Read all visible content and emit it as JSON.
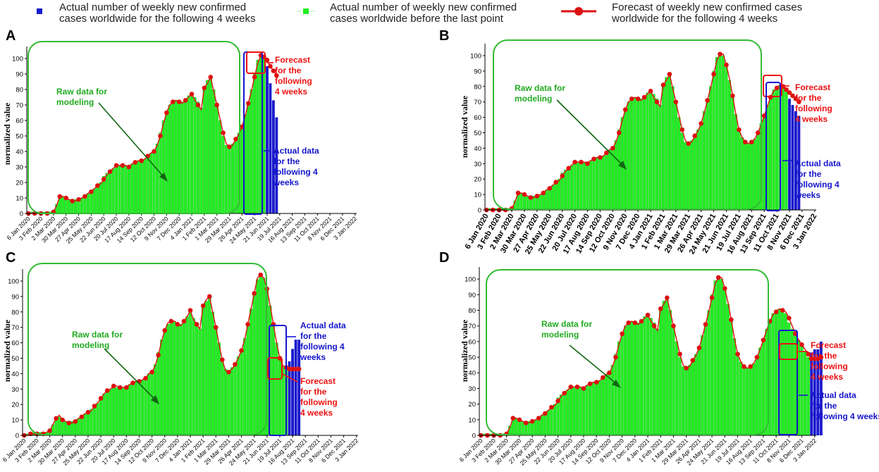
{
  "legend": {
    "blue_label_line1": "Actual number of weekly new confirmed",
    "blue_label_line2": "cases worldwide for the following 4 weeks",
    "green_label_line1": "Actual number of weekly new confirmed",
    "green_label_line2": "cases worldwide before the last point",
    "red_label_line1": "Forecast of weekly new confirmed cases",
    "red_label_line2": "worldwide for the following 4 weeks"
  },
  "colors": {
    "bar_green": "#22ee22",
    "bar_green_edge": "#19b519",
    "bar_blue": "#1a1acc",
    "line_red": "#dd1111",
    "box_green": "#33bb33",
    "annot_green": "#22aa22",
    "annot_red": "#ee1111",
    "annot_blue": "#1515cc"
  },
  "shared": {
    "ylabel": "normalized value",
    "yticks": [
      0,
      10,
      20,
      30,
      40,
      50,
      60,
      70,
      80,
      90,
      100
    ]
  },
  "chart_data": [
    {
      "panel": "A",
      "type": "bar",
      "x_tick_labels": [
        "6 Jan 2020",
        "3 Feb 2020",
        "2 Mar 2020",
        "30 Mar 2020",
        "27 Apr 2020",
        "25 May 2020",
        "22 Jun 2020",
        "20 Jul 2020",
        "17 Aug 2020",
        "14 Sep 2020",
        "12 Oct 2020",
        "9 Nov 2020",
        "7 Dec 2020",
        "4 Jan 2021",
        "1 Feb 2021",
        "1 Mar 2021",
        "29 Mar 2021",
        "26 Apr 2021",
        "24 May 2021",
        "21 Jun 2021",
        "19 Jul 2021",
        "16 Aug 2021",
        "13 Sep 2021",
        "11 Oct 2021",
        "8 Nov 2021",
        "6 Dec 2021",
        "3 Jan 2022"
      ],
      "ylim": [
        0,
        105
      ],
      "series": [
        {
          "name": "Actual number of weekly new confirmed cases worldwide before the last point",
          "kind": "bar",
          "color": "green",
          "values": [
            1,
            1,
            1,
            1,
            1,
            1,
            1,
            1,
            2,
            6,
            10,
            11,
            10,
            9,
            9,
            9,
            9,
            10,
            12,
            13,
            14,
            16,
            18,
            20,
            24,
            26,
            28,
            29,
            30,
            31,
            31,
            31,
            31,
            32,
            33,
            34,
            35,
            35,
            37,
            39,
            41,
            45,
            52,
            60,
            66,
            70,
            72,
            73,
            72,
            72,
            74,
            76,
            78,
            75,
            72,
            68,
            82,
            86,
            88,
            80,
            70,
            60,
            50,
            44,
            43,
            45,
            48,
            52,
            57,
            64,
            72,
            80,
            90,
            99,
            102,
            100
          ]
        },
        {
          "name": "Actual number of weekly new confirmed cases worldwide for the following 4 weeks",
          "kind": "bar",
          "color": "blue",
          "values": [
            95,
            84,
            73,
            62
          ]
        },
        {
          "name": "Forecast of weekly new confirmed cases worldwide for the following 4 weeks",
          "kind": "line",
          "color": "red",
          "values": [
            0,
            0,
            0,
            0,
            0,
            0,
            0,
            0,
            1,
            5,
            11,
            11,
            10,
            9,
            8,
            8,
            9,
            10,
            11,
            13,
            14,
            16,
            18,
            19,
            22,
            25,
            27,
            29,
            31,
            31,
            31,
            31,
            30,
            32,
            33,
            34,
            34,
            35,
            37,
            39,
            40,
            44,
            50,
            58,
            65,
            70,
            72,
            73,
            72,
            71,
            73,
            75,
            77,
            73,
            70,
            67,
            81,
            84,
            88,
            79,
            70,
            61,
            52,
            45,
            43,
            44,
            48,
            51,
            56,
            63,
            71,
            79,
            88,
            97,
            102,
            101,
            99,
            95,
            92,
            89
          ]
        }
      ],
      "annotations": {
        "raw": [
          "Raw data for",
          "modeling"
        ],
        "forecast": [
          "Forecast",
          "for the",
          "following",
          "4 weeks"
        ],
        "actual": [
          "Actual data",
          "for the",
          "following 4",
          "weeks"
        ]
      }
    },
    {
      "panel": "B",
      "type": "bar",
      "x_tick_labels": [
        "6 Jan 2020",
        "3 Feb 2020",
        "2 Mar 2020",
        "30 Mar 2020",
        "27 Apr 2020",
        "25 May 2020",
        "22 Jun 2020",
        "20 Jul 2020",
        "17 Aug 2020",
        "14 Sep 2020",
        "12 Oct 2020",
        "9 Nov 2020",
        "7 Dec 2020",
        "4 Jan 2021",
        "1 Feb 2021",
        "1 Mar 2021",
        "29 Mar 2021",
        "26 Apr 2021",
        "24 May 2021",
        "21 Jun 2021",
        "19 Jul 2021",
        "16 Aug 2021",
        "13 Sep 2021",
        "11 Oct 2021",
        "8 Nov 2021",
        "6 Dec 2021",
        "3 Jan 2022"
      ],
      "ylim": [
        0,
        105
      ],
      "series": [
        {
          "name": "Actual number of weekly new confirmed cases worldwide before the last point",
          "kind": "bar",
          "color": "green",
          "values": [
            1,
            1,
            1,
            1,
            1,
            1,
            1,
            1,
            2,
            6,
            10,
            11,
            10,
            9,
            9,
            9,
            9,
            10,
            12,
            13,
            14,
            16,
            18,
            20,
            24,
            26,
            28,
            29,
            30,
            31,
            31,
            31,
            31,
            32,
            33,
            34,
            35,
            35,
            37,
            39,
            41,
            45,
            52,
            60,
            66,
            70,
            72,
            73,
            72,
            72,
            74,
            76,
            78,
            75,
            72,
            68,
            82,
            86,
            88,
            80,
            70,
            60,
            50,
            44,
            43,
            45,
            48,
            52,
            57,
            64,
            72,
            80,
            90,
            99,
            102,
            100,
            95,
            84,
            73,
            62,
            52,
            47,
            44,
            43,
            44,
            46,
            50,
            56,
            62,
            68,
            74,
            78,
            80,
            81,
            80,
            78
          ]
        },
        {
          "name": "Actual number of weekly new confirmed cases worldwide for the following 4 weeks",
          "kind": "bar",
          "color": "blue",
          "values": [
            72,
            68,
            64,
            61
          ]
        },
        {
          "name": "Forecast of weekly new confirmed cases worldwide for the following 4 weeks",
          "kind": "line",
          "color": "red",
          "values": [
            0,
            0,
            0,
            0,
            0,
            0,
            0,
            0,
            1,
            5,
            11,
            11,
            10,
            9,
            8,
            8,
            9,
            10,
            11,
            13,
            14,
            16,
            18,
            19,
            22,
            25,
            27,
            29,
            31,
            31,
            31,
            31,
            30,
            32,
            33,
            34,
            34,
            35,
            37,
            39,
            40,
            44,
            50,
            58,
            65,
            70,
            72,
            73,
            72,
            71,
            73,
            75,
            77,
            73,
            70,
            67,
            81,
            84,
            88,
            79,
            70,
            61,
            52,
            45,
            43,
            44,
            48,
            51,
            56,
            63,
            71,
            79,
            88,
            97,
            101,
            101,
            94,
            85,
            74,
            62,
            52,
            47,
            44,
            43,
            44,
            46,
            50,
            55,
            61,
            67,
            73,
            77,
            79,
            81,
            80,
            78,
            76,
            74,
            72,
            70
          ]
        }
      ],
      "annotations": {
        "raw": [
          "Raw data for",
          "modeling"
        ],
        "forecast": [
          "Forecast",
          "for the",
          "following",
          "4 weeks"
        ],
        "actual": [
          "Actual data",
          "for the",
          "following 4",
          "weeks"
        ]
      }
    },
    {
      "panel": "C",
      "type": "bar",
      "x_tick_labels": [
        "6 Jan 2020",
        "3 Feb 2020",
        "2 Mar 2020",
        "30 Mar 2020",
        "27 Apr 2020",
        "25 May 2020",
        "22 Jun 2020",
        "20 Jul 2020",
        "17 Aug 2020",
        "14 Sep 2020",
        "12 Oct 2020",
        "9 Nov 2020",
        "7 Dec 2020",
        "4 Jan 2021",
        "1 Feb 2021",
        "1 Mar 2021",
        "29 Mar 2021",
        "26 Apr 2021",
        "24 May 2021",
        "21 Jun 2021",
        "19 Jul 2021",
        "16 Aug 2021",
        "13 Sep 2021",
        "11 Oct 2021",
        "8 Nov 2021",
        "6 Dec 2021",
        "3 Jan 2022"
      ],
      "ylim": [
        0,
        105
      ],
      "series": [
        {
          "name": "Actual number of weekly new confirmed cases worldwide before the last point",
          "kind": "bar",
          "color": "green",
          "values": [
            1,
            1,
            2,
            2,
            2,
            2,
            2,
            2,
            3,
            7,
            11,
            12,
            10,
            9,
            9,
            9,
            10,
            11,
            12,
            14,
            15,
            17,
            19,
            21,
            25,
            27,
            29,
            30,
            31,
            31,
            31,
            31,
            32,
            33,
            34,
            35,
            35,
            36,
            38,
            40,
            42,
            46,
            54,
            62,
            68,
            72,
            73,
            74,
            72,
            72,
            75,
            77,
            80,
            76,
            73,
            69,
            83,
            87,
            89,
            80,
            70,
            60,
            50,
            43,
            42,
            44,
            47,
            51,
            56,
            63,
            72,
            82,
            92,
            101,
            104,
            102,
            95,
            84,
            72,
            60,
            50,
            45,
            44
          ]
        },
        {
          "name": "Actual number of weekly new confirmed cases worldwide for the following 4 weeks",
          "kind": "bar",
          "color": "blue",
          "values": [
            48,
            56,
            62,
            62
          ]
        },
        {
          "name": "Forecast of weekly new confirmed cases worldwide for the following 4 weeks",
          "kind": "line",
          "color": "red",
          "values": [
            0,
            0,
            1,
            1,
            1,
            1,
            1,
            2,
            3,
            7,
            11,
            13,
            10,
            9,
            8,
            8,
            9,
            11,
            12,
            14,
            15,
            16,
            19,
            21,
            24,
            27,
            29,
            30,
            32,
            32,
            31,
            31,
            31,
            33,
            34,
            35,
            35,
            36,
            37,
            40,
            41,
            45,
            52,
            61,
            68,
            73,
            74,
            74,
            72,
            71,
            74,
            77,
            81,
            75,
            72,
            69,
            84,
            88,
            90,
            80,
            70,
            59,
            49,
            42,
            41,
            43,
            46,
            50,
            55,
            62,
            72,
            82,
            92,
            102,
            104,
            102,
            95,
            84,
            72,
            60,
            50,
            45,
            44,
            43,
            43,
            43,
            43
          ]
        }
      ],
      "annotations": {
        "raw": [
          "Raw data for",
          "modeling"
        ],
        "forecast": [
          "Forecast",
          "for the",
          "following",
          "4 weeks"
        ],
        "actual": [
          "Actual data",
          "for the",
          "following 4",
          "weeks"
        ]
      }
    },
    {
      "panel": "D",
      "type": "bar",
      "x_tick_labels": [
        "6 Jan 2020",
        "3 Feb 2020",
        "2 Mar 2020",
        "30 Mar 2020",
        "27 Apr 2020",
        "25 May 2020",
        "22 Jun 2020",
        "20 Jul 2020",
        "17 Aug 2020",
        "14 Sep 2020",
        "12 Oct 2020",
        "9 Nov 2020",
        "7 Dec 2020",
        "4 Jan 2021",
        "1 Feb 2021",
        "1 Mar 2021",
        "29 Mar 2021",
        "26 Apr 2021",
        "24 May 2021",
        "21 Jun 2021",
        "19 Jul 2021",
        "16 Aug 2021",
        "13 Sep 2021",
        "11 Oct 2021",
        "8 Nov 2021",
        "6 Dec 2021",
        "3 Jan 2022"
      ],
      "ylim": [
        0,
        105
      ],
      "series": [
        {
          "name": "Actual number of weekly new confirmed cases worldwide before the last point",
          "kind": "bar",
          "color": "green",
          "values": [
            1,
            1,
            1,
            1,
            1,
            1,
            1,
            1,
            2,
            6,
            10,
            11,
            10,
            9,
            9,
            9,
            9,
            10,
            12,
            13,
            14,
            16,
            18,
            20,
            24,
            26,
            28,
            29,
            30,
            31,
            31,
            31,
            31,
            32,
            33,
            34,
            35,
            35,
            37,
            39,
            41,
            45,
            52,
            60,
            66,
            70,
            72,
            73,
            72,
            72,
            74,
            76,
            78,
            75,
            72,
            68,
            82,
            86,
            88,
            80,
            70,
            60,
            50,
            44,
            43,
            45,
            48,
            52,
            57,
            64,
            72,
            80,
            90,
            99,
            102,
            100,
            95,
            84,
            73,
            62,
            52,
            47,
            44,
            43,
            44,
            46,
            50,
            56,
            62,
            68,
            74,
            78,
            80,
            81,
            80,
            78,
            72,
            68,
            64,
            61,
            58,
            54,
            50
          ]
        },
        {
          "name": "Actual number of weekly new confirmed cases worldwide for the following 4 weeks",
          "kind": "bar",
          "color": "blue",
          "values": [
            53,
            55,
            55,
            60
          ]
        },
        {
          "name": "Forecast of weekly new confirmed cases worldwide for the following 4 weeks",
          "kind": "line",
          "color": "red",
          "values": [
            0,
            0,
            0,
            0,
            0,
            0,
            0,
            0,
            1,
            5,
            11,
            11,
            10,
            9,
            8,
            8,
            9,
            10,
            11,
            13,
            14,
            16,
            18,
            19,
            22,
            25,
            27,
            29,
            31,
            31,
            31,
            31,
            30,
            32,
            33,
            34,
            34,
            35,
            37,
            39,
            40,
            44,
            50,
            58,
            65,
            70,
            72,
            73,
            72,
            71,
            73,
            75,
            77,
            73,
            70,
            67,
            81,
            84,
            88,
            79,
            70,
            61,
            52,
            45,
            43,
            44,
            48,
            51,
            56,
            63,
            71,
            79,
            88,
            97,
            101,
            101,
            94,
            85,
            74,
            62,
            52,
            47,
            44,
            43,
            44,
            46,
            50,
            55,
            61,
            67,
            73,
            77,
            79,
            81,
            80,
            79,
            75,
            70,
            65,
            61,
            58,
            55,
            52,
            49,
            49,
            49,
            50
          ]
        }
      ],
      "annotations": {
        "raw": [
          "Raw data for",
          "modeling"
        ],
        "forecast": [
          "Forecast",
          "for the",
          "following",
          "4 weeks"
        ],
        "actual": [
          "Actual data",
          "for the",
          "following 4 weeks"
        ]
      }
    }
  ]
}
